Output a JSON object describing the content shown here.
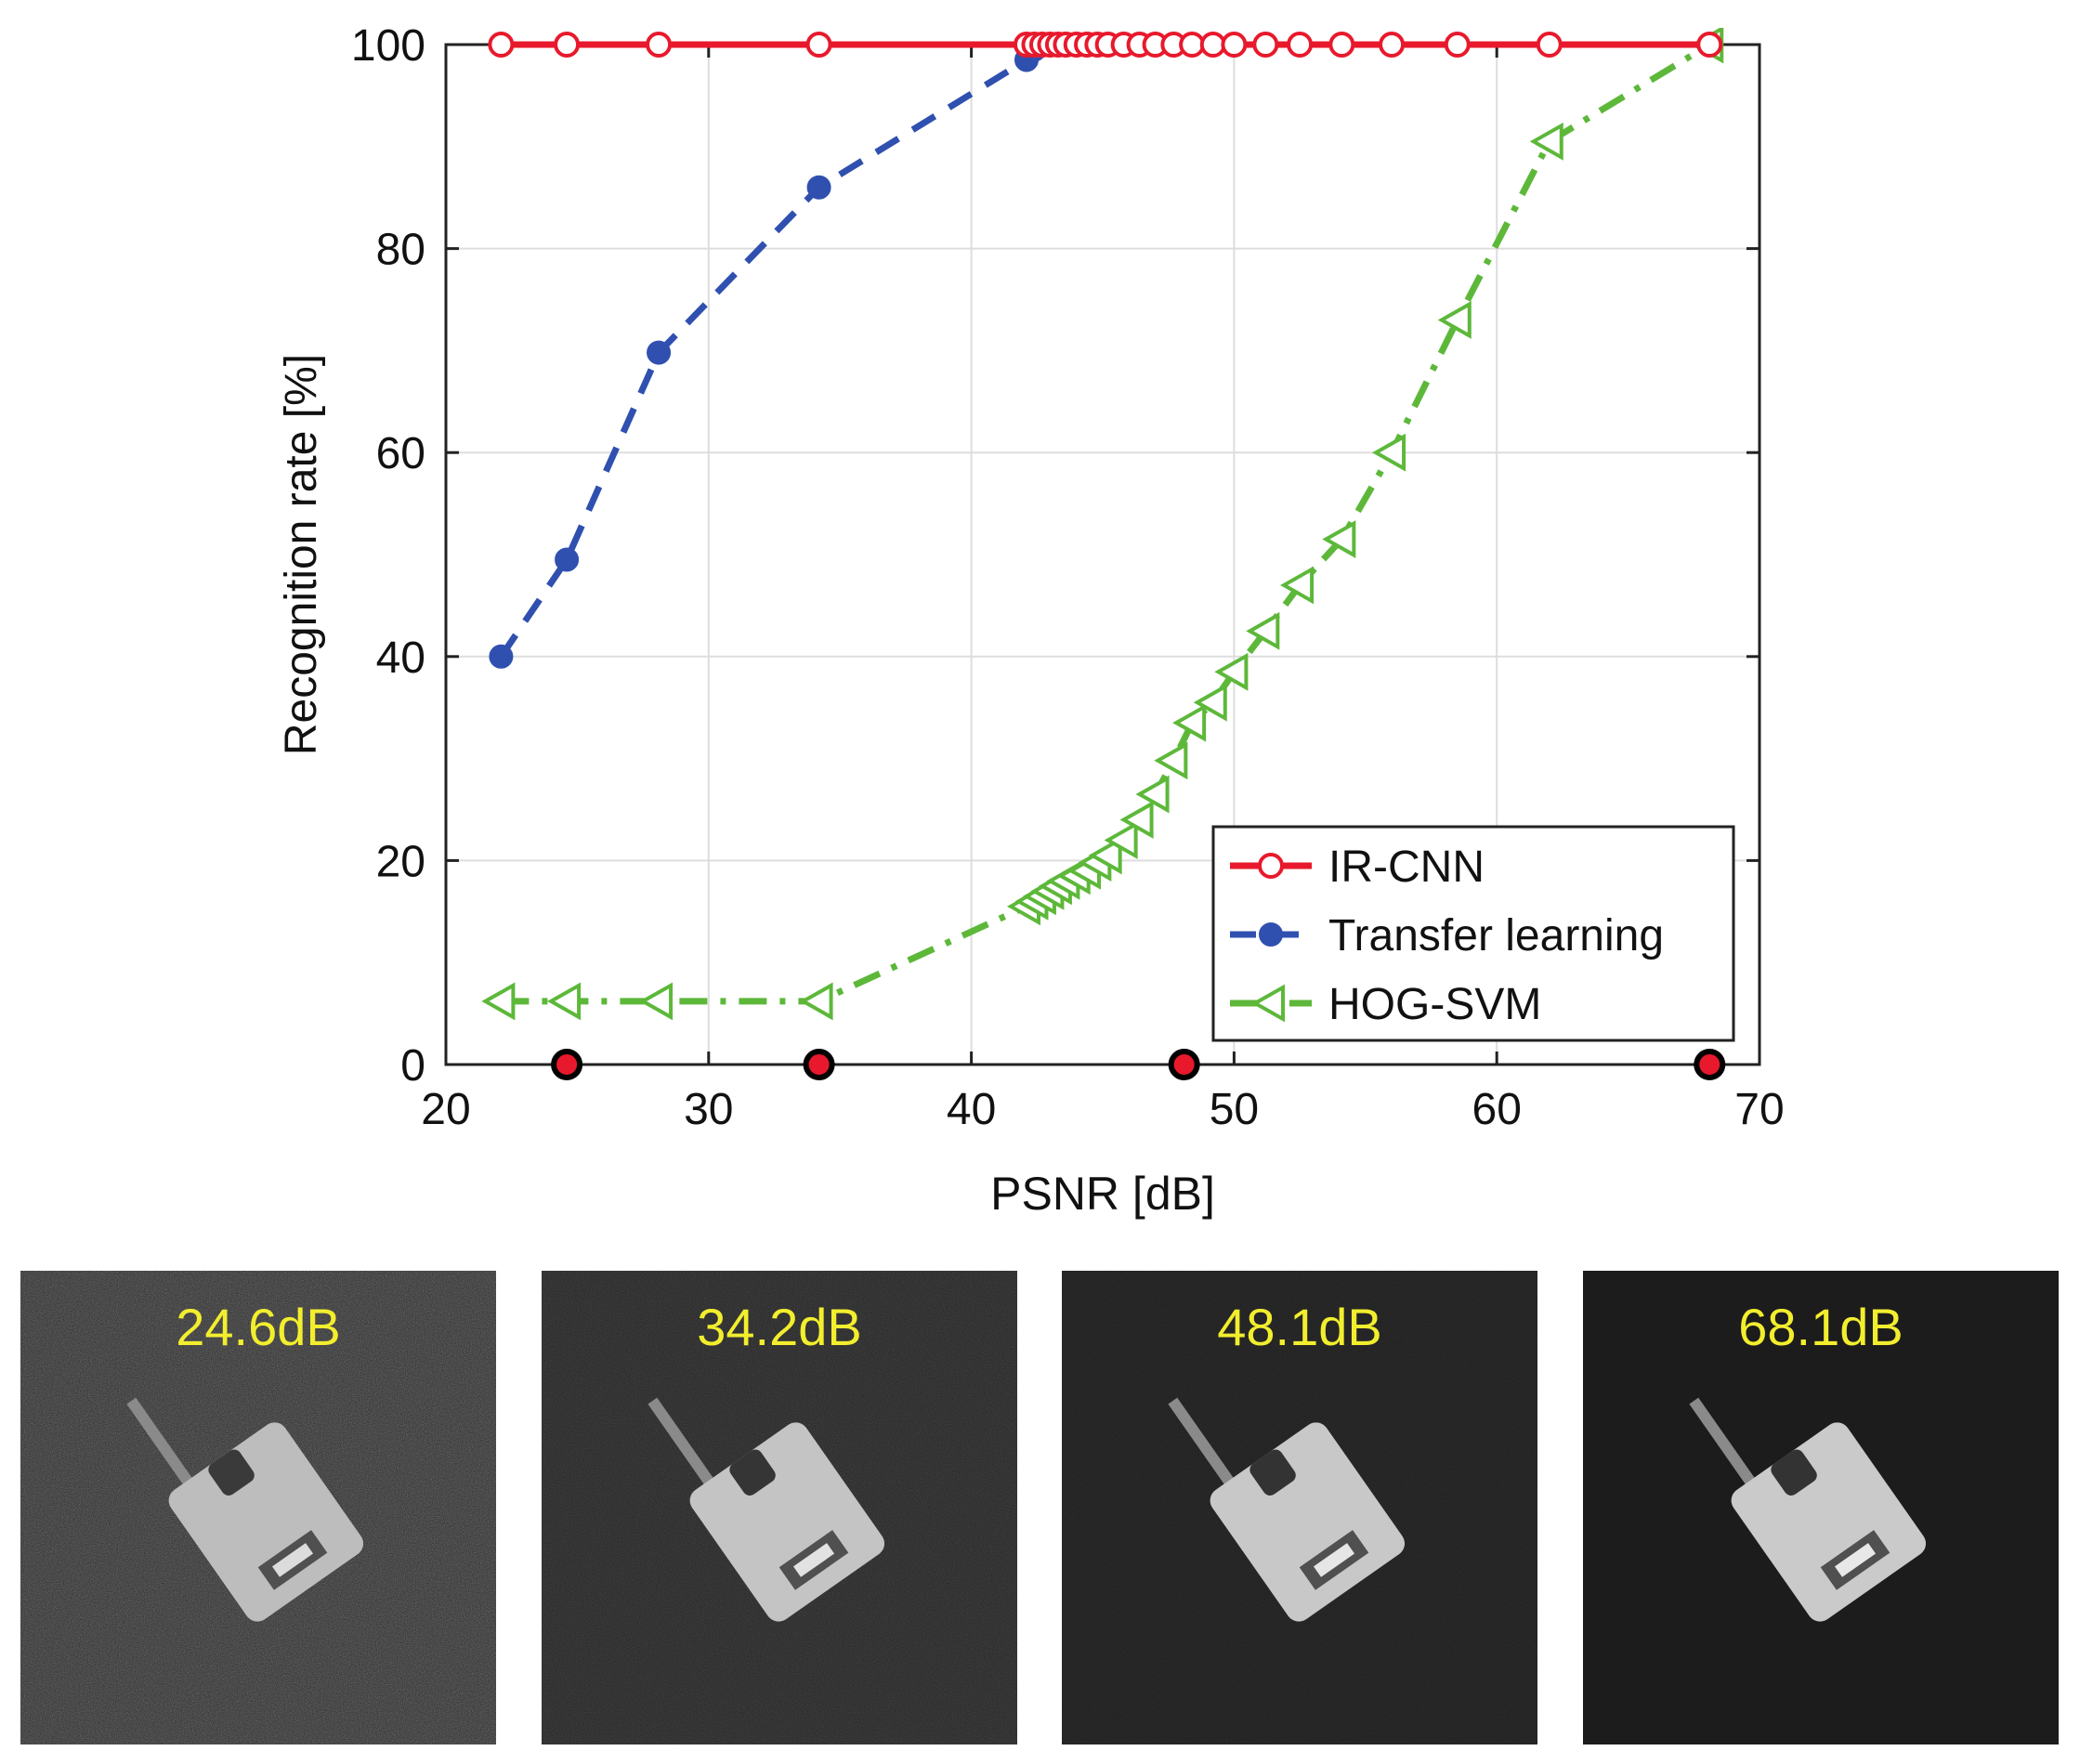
{
  "chart_data": {
    "type": "line",
    "xlabel": "PSNR [dB]",
    "ylabel": "Recognition rate [%]",
    "xlim": [
      20,
      70
    ],
    "ylim": [
      0,
      100
    ],
    "xticks": [
      20,
      30,
      40,
      50,
      60,
      70
    ],
    "yticks": [
      0,
      20,
      40,
      60,
      80,
      100
    ],
    "grid": true,
    "legend_position": "bottom-right",
    "series": [
      {
        "name": "IR-CNN",
        "color": "#e8192c",
        "style": "solid",
        "marker": "open-circle",
        "x": [
          22.1,
          24.6,
          28.1,
          34.2,
          42.1,
          42.4,
          42.7,
          43.0,
          43.3,
          43.6,
          44.0,
          44.4,
          44.8,
          45.2,
          45.8,
          46.4,
          47.0,
          47.7,
          48.4,
          49.2,
          50.0,
          51.2,
          52.5,
          54.1,
          56.0,
          58.5,
          62.0,
          68.1
        ],
        "y": [
          100,
          100,
          100,
          100,
          100,
          100,
          100,
          100,
          100,
          100,
          100,
          100,
          100,
          100,
          100,
          100,
          100,
          100,
          100,
          100,
          100,
          100,
          100,
          100,
          100,
          100,
          100,
          100
        ]
      },
      {
        "name": "Transfer learning",
        "color": "#3050b0",
        "style": "dashed",
        "marker": "filled-circle",
        "x": [
          22.1,
          24.6,
          28.1,
          34.2,
          42.1,
          42.4,
          42.7,
          43.0,
          43.3,
          43.6,
          44.0,
          44.4,
          44.8,
          45.2,
          45.8,
          46.4,
          47.0,
          47.7,
          48.4,
          49.2,
          50.0,
          51.2,
          52.5,
          54.1,
          56.0,
          58.5,
          62.0,
          68.1
        ],
        "y": [
          40,
          49.5,
          69.8,
          86,
          98.5,
          99.5,
          100,
          100,
          100,
          100,
          100,
          100,
          100,
          100,
          100,
          100,
          100,
          100,
          100,
          100,
          100,
          100,
          100,
          100,
          100,
          100,
          100,
          100
        ]
      },
      {
        "name": "HOG-SVM",
        "color": "#5db83a",
        "style": "dashdot",
        "marker": "left-triangle",
        "x": [
          22.1,
          24.6,
          28.1,
          34.2,
          42.1,
          42.4,
          42.7,
          43.0,
          43.3,
          43.6,
          44.0,
          44.4,
          44.8,
          45.2,
          45.8,
          46.4,
          47.0,
          47.7,
          48.4,
          49.2,
          50.0,
          51.2,
          52.5,
          54.1,
          56.0,
          58.5,
          62.0,
          68.1
        ],
        "y": [
          6.2,
          6.2,
          6.2,
          6.2,
          15.5,
          16,
          16.5,
          17,
          17.5,
          18,
          18.5,
          19,
          19.8,
          20.5,
          22,
          24,
          26.5,
          29.8,
          33.5,
          35.5,
          38.5,
          42.5,
          47,
          51.5,
          60,
          73,
          90.5,
          100
        ]
      }
    ],
    "highlight_points": {
      "marker": "filled-red-circle-black-edge",
      "x": [
        24.6,
        34.2,
        48.1,
        68.1
      ],
      "y": [
        0,
        0,
        0,
        0
      ]
    }
  },
  "thumbnails": [
    {
      "label": "24.6dB",
      "noise": "heavy"
    },
    {
      "label": "34.2dB",
      "noise": "medium"
    },
    {
      "label": "48.1dB",
      "noise": "light"
    },
    {
      "label": "68.1dB",
      "noise": "none"
    }
  ]
}
